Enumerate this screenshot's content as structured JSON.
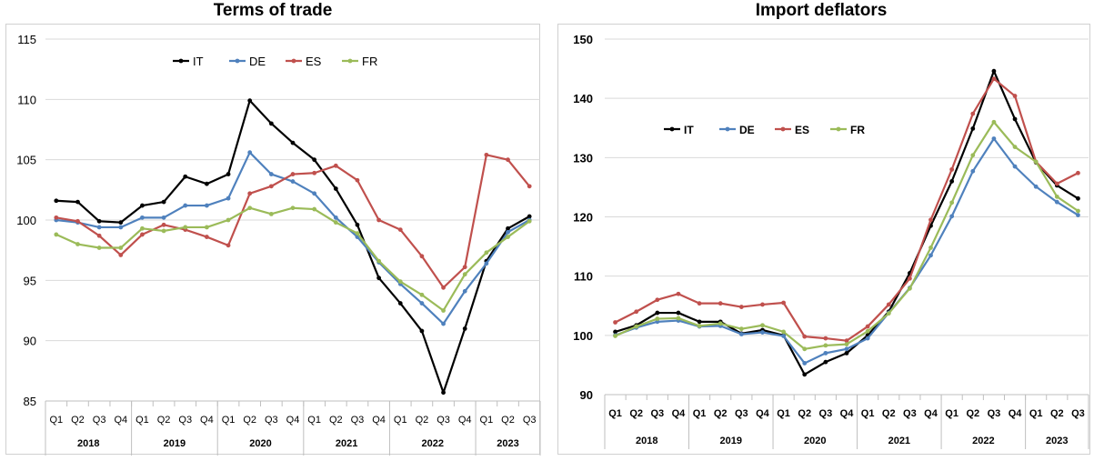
{
  "chart_data": [
    {
      "type": "line",
      "title": "Terms of trade",
      "xlabel": "",
      "ylabel": "",
      "ylim": [
        85,
        115
      ],
      "yticks": [
        85,
        90,
        95,
        100,
        105,
        110,
        115
      ],
      "quarters": [
        "Q1",
        "Q2",
        "Q3",
        "Q4",
        "Q1",
        "Q2",
        "Q3",
        "Q4",
        "Q1",
        "Q2",
        "Q3",
        "Q4",
        "Q1",
        "Q2",
        "Q3",
        "Q4",
        "Q1",
        "Q2",
        "Q3",
        "Q4",
        "Q1",
        "Q2",
        "Q3"
      ],
      "years": [
        "2018",
        "2019",
        "2020",
        "2021",
        "2022",
        "2023"
      ],
      "grid": "horizontal",
      "legend_position": "top-left",
      "series": [
        {
          "name": "IT",
          "color": "#000000",
          "values": [
            101.6,
            101.5,
            99.9,
            99.8,
            101.2,
            101.5,
            103.6,
            103.0,
            103.8,
            109.9,
            108.0,
            106.4,
            105.0,
            102.6,
            99.6,
            95.2,
            93.1,
            90.8,
            85.7,
            91.0,
            96.6,
            99.3,
            100.3
          ]
        },
        {
          "name": "DE",
          "color": "#4f81bd",
          "values": [
            100.0,
            99.8,
            99.4,
            99.4,
            100.2,
            100.2,
            101.2,
            101.2,
            101.8,
            105.6,
            103.8,
            103.2,
            102.2,
            100.2,
            98.6,
            96.5,
            94.7,
            93.1,
            91.4,
            94.1,
            96.4,
            99.0,
            100.0
          ]
        },
        {
          "name": "ES",
          "color": "#c0504d",
          "values": [
            100.2,
            99.9,
            98.7,
            97.1,
            98.8,
            99.6,
            99.2,
            98.6,
            97.9,
            102.2,
            102.8,
            103.8,
            103.9,
            104.5,
            103.3,
            100.0,
            99.2,
            97.0,
            94.4,
            96.1,
            105.4,
            105.0,
            102.8
          ]
        },
        {
          "name": "FR",
          "color": "#9bbb59",
          "values": [
            98.8,
            98.0,
            97.7,
            97.7,
            99.3,
            99.1,
            99.4,
            99.4,
            100.0,
            101.0,
            100.5,
            101.0,
            100.9,
            99.8,
            98.9,
            96.6,
            94.9,
            93.8,
            92.5,
            95.5,
            97.3,
            98.6,
            99.9
          ]
        }
      ]
    },
    {
      "type": "line",
      "title": "Import deflators",
      "xlabel": "",
      "ylabel": "",
      "ylim": [
        90,
        150
      ],
      "yticks": [
        90,
        100,
        110,
        120,
        130,
        140,
        150
      ],
      "quarters": [
        "Q1",
        "Q2",
        "Q3",
        "Q4",
        "Q1",
        "Q2",
        "Q3",
        "Q4",
        "Q1",
        "Q2",
        "Q3",
        "Q4",
        "Q1",
        "Q2",
        "Q3",
        "Q4",
        "Q1",
        "Q2",
        "Q3",
        "Q4",
        "Q1",
        "Q2",
        "Q3"
      ],
      "years": [
        "2018",
        "2019",
        "2020",
        "2021",
        "2022",
        "2023"
      ],
      "grid": "horizontal",
      "legend_position": "top-left",
      "series": [
        {
          "name": "IT",
          "color": "#000000",
          "values": [
            100.6,
            101.7,
            103.8,
            103.8,
            102.3,
            102.3,
            100.3,
            100.9,
            100.0,
            93.4,
            95.5,
            97.0,
            100.0,
            104.0,
            110.5,
            118.5,
            126.0,
            134.9,
            144.6,
            136.5,
            129.2,
            125.3,
            123.1
          ]
        },
        {
          "name": "DE",
          "color": "#4f81bd",
          "values": [
            100.0,
            101.3,
            102.3,
            102.5,
            101.5,
            101.6,
            100.2,
            100.5,
            99.9,
            95.3,
            97.0,
            97.7,
            99.5,
            103.8,
            108.0,
            113.5,
            120.1,
            127.7,
            133.2,
            128.5,
            125.1,
            122.5,
            120.3
          ]
        },
        {
          "name": "ES",
          "color": "#c0504d",
          "values": [
            102.2,
            104.0,
            106.0,
            107.0,
            105.4,
            105.4,
            104.8,
            105.2,
            105.5,
            99.8,
            99.5,
            99.1,
            101.5,
            105.2,
            109.6,
            119.5,
            128.0,
            137.4,
            143.3,
            140.4,
            129.3,
            125.6,
            127.4
          ]
        },
        {
          "name": "FR",
          "color": "#9bbb59",
          "values": [
            99.9,
            101.5,
            102.8,
            102.9,
            101.6,
            102.0,
            101.1,
            101.7,
            100.6,
            97.7,
            98.3,
            98.5,
            100.7,
            103.7,
            107.9,
            114.8,
            122.4,
            130.4,
            136.0,
            131.8,
            129.3,
            123.4,
            121.0
          ]
        }
      ]
    }
  ]
}
